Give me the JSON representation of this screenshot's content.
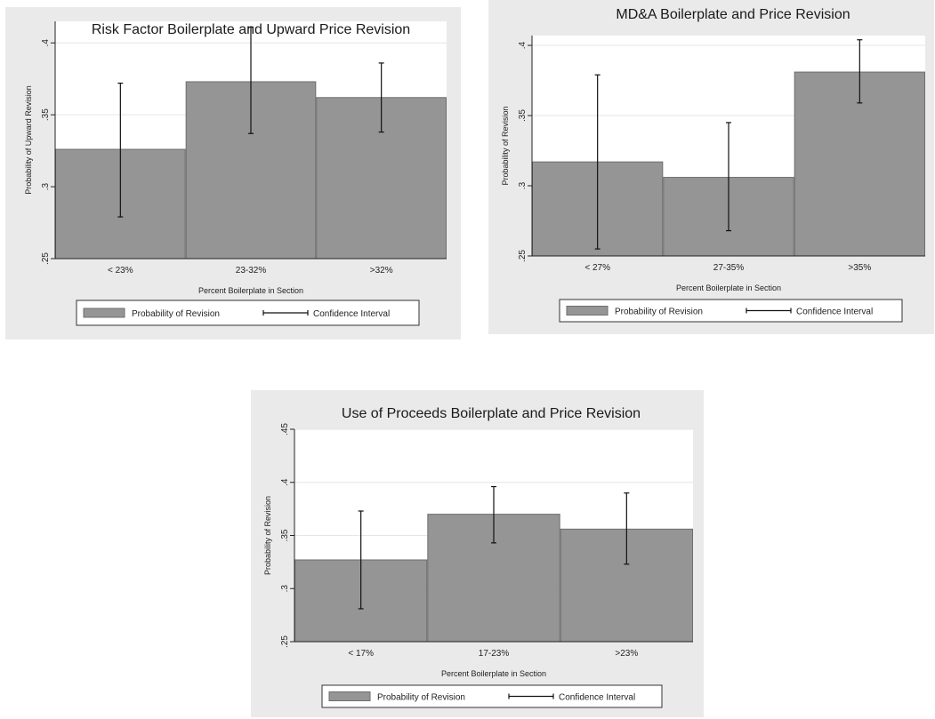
{
  "colors": {
    "panel_bg": "#eaeaea",
    "plot_bg": "#ffffff",
    "bar": "#959595",
    "bar_edge": "#6e6e6e",
    "grid": "#e6e6e6",
    "ci": "#111111"
  },
  "legend": {
    "bar_label": "Probability of Revision",
    "ci_label": "Confidence Interval"
  },
  "chart_data": [
    {
      "type": "bar",
      "title": "Risk Factor Boilerplate and Upward Price Revision",
      "xlabel": "Percent Boilerplate in Section",
      "ylabel": "Probability of Upward Revision",
      "categories": [
        "< 23%",
        "23-32%",
        ">32%"
      ],
      "series": [
        {
          "name": "Probability of Revision",
          "values": [
            0.326,
            0.373,
            0.362
          ]
        },
        {
          "name": "Confidence Interval",
          "low": [
            0.279,
            0.337,
            0.338
          ],
          "high": [
            0.372,
            0.411,
            0.386
          ]
        }
      ],
      "ylim": [
        0.25,
        0.415
      ],
      "yticks": [
        0.25,
        0.3,
        0.35,
        0.4
      ],
      "ytick_labels": [
        ".25",
        ".3",
        ".35",
        ".4"
      ],
      "grid": true,
      "legend_position": "bottom"
    },
    {
      "type": "bar",
      "title": "MD&A Boilerplate and Price Revision",
      "xlabel": "Percent Boilerplate in Section",
      "ylabel": "Probability of Revision",
      "categories": [
        "< 27%",
        "27-35%",
        ">35%"
      ],
      "series": [
        {
          "name": "Probability of Revision",
          "values": [
            0.317,
            0.306,
            0.381
          ]
        },
        {
          "name": "Confidence Interval",
          "low": [
            0.255,
            0.268,
            0.359
          ],
          "high": [
            0.379,
            0.345,
            0.404
          ]
        }
      ],
      "ylim": [
        0.25,
        0.407
      ],
      "yticks": [
        0.25,
        0.3,
        0.35,
        0.4
      ],
      "ytick_labels": [
        ".25",
        ".3",
        ".35",
        ".4"
      ],
      "grid": true,
      "legend_position": "bottom"
    },
    {
      "type": "bar",
      "title": "Use of Proceeds Boilerplate and Price Revision",
      "xlabel": "Percent Boilerplate in Section",
      "ylabel": "Probability of Revision",
      "categories": [
        "< 17%",
        "17-23%",
        ">23%"
      ],
      "series": [
        {
          "name": "Probability of Revision",
          "values": [
            0.327,
            0.37,
            0.356
          ]
        },
        {
          "name": "Confidence Interval",
          "low": [
            0.281,
            0.343,
            0.323
          ],
          "high": [
            0.373,
            0.396,
            0.39
          ]
        }
      ],
      "ylim": [
        0.25,
        0.45
      ],
      "yticks": [
        0.25,
        0.3,
        0.35,
        0.4,
        0.45
      ],
      "ytick_labels": [
        ".25",
        ".3",
        ".35",
        ".4",
        ".45"
      ],
      "grid": true,
      "legend_position": "bottom"
    }
  ]
}
